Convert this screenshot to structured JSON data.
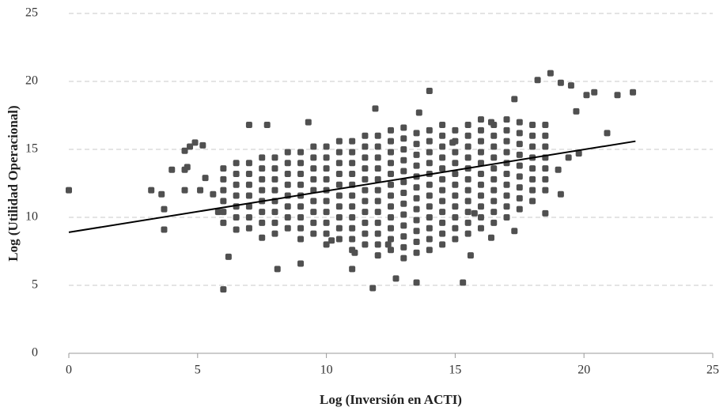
{
  "chart_data": {
    "type": "scatter",
    "xlabel": "Log (Inversión en ACTI)",
    "ylabel": "Log (Utilidad Operacional)",
    "xlim": [
      0,
      25
    ],
    "xticks": [
      0,
      5,
      10,
      15,
      20,
      25
    ],
    "ylim": [
      0,
      25
    ],
    "yticks": [
      0,
      5,
      10,
      15,
      20,
      25
    ],
    "grid": true,
    "color": "#505050",
    "x": [
      6,
      6,
      6,
      6,
      6,
      6,
      6.5,
      6.5,
      6.5,
      6.5,
      6.5,
      6.5,
      7,
      7,
      7,
      7,
      7,
      7,
      7,
      7.5,
      7.5,
      7.5,
      7.5,
      7.5,
      7.5,
      7.5,
      8,
      8,
      8,
      8,
      8,
      8,
      8,
      8,
      8.5,
      8.5,
      8.5,
      8.5,
      8.5,
      8.5,
      8.5,
      8.5,
      9,
      9,
      9,
      9,
      9,
      9,
      9,
      9,
      9,
      9.5,
      9.5,
      9.5,
      9.5,
      9.5,
      9.5,
      9.5,
      9.5,
      9.5,
      10,
      10,
      10,
      10,
      10,
      10,
      10,
      10,
      10,
      10,
      10.5,
      10.5,
      10.5,
      10.5,
      10.5,
      10.5,
      10.5,
      10.5,
      10.5,
      10.5,
      11,
      11,
      11,
      11,
      11,
      11,
      11,
      11,
      11,
      11,
      11,
      11.5,
      11.5,
      11.5,
      11.5,
      11.5,
      11.5,
      11.5,
      11.5,
      11.5,
      11.5,
      11.5,
      12,
      12,
      12,
      12,
      12,
      12,
      12,
      12,
      12,
      12,
      12,
      12,
      12.5,
      12.5,
      12.5,
      12.5,
      12.5,
      12.5,
      12.5,
      12.5,
      12.5,
      12.5,
      12.5,
      12.5,
      13,
      13,
      13,
      13,
      13,
      13,
      13,
      13,
      13,
      13,
      13,
      13,
      13,
      13.5,
      13.5,
      13.5,
      13.5,
      13.5,
      13.5,
      13.5,
      13.5,
      13.5,
      13.5,
      13.5,
      13.5,
      14,
      14,
      14,
      14,
      14,
      14,
      14,
      14,
      14,
      14,
      14,
      14,
      14.5,
      14.5,
      14.5,
      14.5,
      14.5,
      14.5,
      14.5,
      14.5,
      14.5,
      14.5,
      14.5,
      14.5,
      15,
      15,
      15,
      15,
      15,
      15,
      15,
      15,
      15,
      15,
      15,
      15.5,
      15.5,
      15.5,
      15.5,
      15.5,
      15.5,
      15.5,
      15.5,
      15.5,
      15.5,
      15.5,
      16,
      16,
      16,
      16,
      16,
      16,
      16,
      16,
      16,
      16,
      16,
      16.5,
      16.5,
      16.5,
      16.5,
      16.5,
      16.5,
      16.5,
      16.5,
      16.5,
      16.5,
      17,
      17,
      17,
      17,
      17,
      17,
      17,
      17,
      17,
      17,
      17.5,
      17.5,
      17.5,
      17.5,
      17.5,
      17.5,
      17.5,
      17.5,
      17.5,
      18,
      18,
      18,
      18,
      18,
      18,
      18,
      18,
      18.5,
      18.5,
      18.5,
      18.5,
      18.5,
      18.5,
      18.5,
      0,
      3.2,
      3.7,
      3.7,
      3.6,
      4.0,
      4.5,
      4.6,
      4.5,
      4.7,
      4.9,
      4.5,
      5.2,
      5.1,
      5.3,
      6.0,
      6.2,
      7.0,
      7.7,
      8.1,
      9.3,
      9.0,
      11.0,
      11.9,
      11.8,
      12.7,
      13.5,
      13.6,
      14.0,
      15.3,
      15.6,
      16.4,
      17.3,
      18.5,
      18.2,
      18.7,
      19.1,
      19.5,
      19.7,
      20.1,
      20.4,
      20.9,
      21.3,
      21.9,
      19.1,
      19.0,
      19.4,
      19.8,
      17.3,
      16.4,
      14.9,
      12.4,
      11.1,
      10.2,
      7.5,
      6.5,
      5.8,
      5.6,
      15.75
    ],
    "values": [
      9.6,
      10.4,
      11.2,
      12.0,
      12.8,
      13.6,
      10.0,
      10.8,
      11.6,
      12.4,
      13.2,
      14.0,
      9.2,
      10.0,
      10.8,
      11.6,
      12.4,
      13.2,
      14.0,
      9.6,
      10.4,
      11.2,
      12.0,
      12.8,
      13.6,
      14.4,
      8.8,
      9.6,
      10.4,
      11.2,
      12.0,
      12.8,
      13.6,
      14.4,
      9.2,
      10.0,
      10.8,
      11.6,
      12.4,
      13.2,
      14.0,
      14.8,
      8.4,
      9.2,
      10.0,
      10.8,
      11.6,
      12.4,
      13.2,
      14.0,
      14.8,
      8.8,
      9.6,
      10.4,
      11.2,
      12.0,
      12.8,
      13.6,
      14.4,
      15.2,
      8.0,
      8.8,
      9.6,
      10.4,
      11.2,
      12.0,
      12.8,
      13.6,
      14.4,
      15.2,
      8.4,
      9.2,
      10.0,
      10.8,
      11.6,
      12.4,
      13.2,
      14.0,
      14.8,
      15.6,
      7.6,
      8.4,
      9.2,
      10.0,
      10.8,
      11.6,
      12.4,
      13.2,
      14.0,
      14.8,
      15.6,
      8.0,
      8.8,
      9.6,
      10.4,
      11.2,
      12.0,
      12.8,
      13.6,
      14.4,
      15.2,
      16.0,
      7.2,
      8.0,
      8.8,
      9.6,
      10.4,
      11.2,
      12.0,
      12.8,
      13.6,
      14.4,
      15.2,
      16.0,
      7.6,
      8.4,
      9.2,
      10.0,
      10.8,
      11.6,
      12.4,
      13.2,
      14.0,
      14.8,
      15.6,
      16.4,
      7.0,
      7.8,
      8.6,
      9.4,
      10.2,
      11.0,
      11.8,
      12.6,
      13.4,
      14.2,
      15.0,
      15.8,
      16.6,
      7.4,
      8.2,
      9.0,
      9.8,
      10.6,
      11.4,
      12.2,
      13.0,
      13.8,
      14.6,
      15.4,
      16.2,
      7.6,
      8.4,
      9.2,
      10.0,
      10.8,
      11.6,
      12.4,
      13.2,
      14.0,
      14.8,
      15.6,
      16.4,
      8.0,
      8.8,
      9.6,
      10.4,
      11.2,
      12.0,
      12.8,
      13.6,
      14.4,
      15.2,
      16.0,
      16.8,
      8.4,
      9.2,
      10.0,
      10.8,
      11.6,
      12.4,
      13.2,
      14.0,
      14.8,
      15.6,
      16.4,
      8.8,
      9.6,
      10.4,
      11.2,
      12.0,
      12.8,
      13.6,
      14.4,
      15.2,
      16.0,
      16.8,
      9.2,
      10.0,
      10.8,
      11.6,
      12.4,
      13.2,
      14.0,
      14.8,
      15.6,
      16.4,
      17.2,
      9.6,
      10.4,
      11.2,
      12.0,
      12.8,
      13.6,
      14.4,
      15.2,
      16.0,
      16.8,
      10.0,
      10.8,
      11.6,
      12.4,
      13.2,
      14.0,
      14.8,
      15.6,
      16.4,
      17.2,
      10.6,
      11.4,
      12.2,
      13.0,
      13.8,
      14.6,
      15.4,
      16.2,
      17.0,
      11.2,
      12.0,
      12.8,
      13.6,
      14.4,
      15.2,
      16.0,
      16.8,
      12.0,
      12.8,
      13.6,
      14.4,
      15.2,
      16.0,
      16.8,
      12.0,
      12.0,
      10.6,
      9.1,
      11.7,
      13.5,
      13.5,
      13.7,
      14.9,
      15.2,
      15.5,
      12.0,
      15.3,
      12.0,
      12.9,
      4.7,
      7.1,
      16.8,
      16.8,
      6.2,
      17.0,
      6.6,
      6.2,
      18.0,
      4.8,
      5.5,
      5.2,
      17.7,
      19.3,
      5.2,
      7.2,
      8.5,
      9.0,
      10.3,
      20.1,
      20.6,
      19.9,
      19.7,
      17.8,
      19.0,
      19.2,
      16.2,
      19.0,
      19.2,
      11.7,
      13.5,
      14.4,
      14.7,
      18.7,
      17.0,
      15.5,
      8.0,
      7.4,
      8.3,
      8.5,
      9.1,
      10.4,
      11.7,
      10.3
    ],
    "trendline": {
      "color": "#000000",
      "x": [
        0,
        22
      ],
      "values": [
        8.9,
        15.6
      ]
    }
  }
}
